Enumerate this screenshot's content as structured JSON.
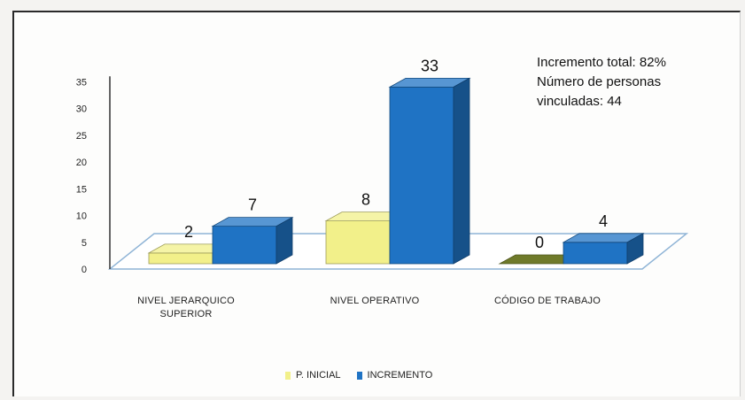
{
  "chart_data": {
    "type": "bar",
    "categories": [
      "NIVEL JERARQUICO SUPERIOR",
      "NIVEL OPERATIVO",
      "CÓDIGO DE TRABAJO"
    ],
    "series": [
      {
        "name": "P. INICIAL",
        "values": [
          2,
          8,
          0
        ],
        "color": "#f2f08a"
      },
      {
        "name": "INCREMENTO",
        "values": [
          7,
          33,
          4
        ],
        "color": "#1f73c4"
      }
    ],
    "zero_bar_color": "#6f7a2a",
    "yticks": [
      0,
      5,
      10,
      15,
      20,
      25,
      30,
      35
    ],
    "ylim": [
      0,
      35
    ],
    "legend_position": "bottom",
    "grid": false,
    "annotation": [
      "Incremento total: 82%",
      "Número de personas",
      "vinculadas: 44"
    ]
  }
}
